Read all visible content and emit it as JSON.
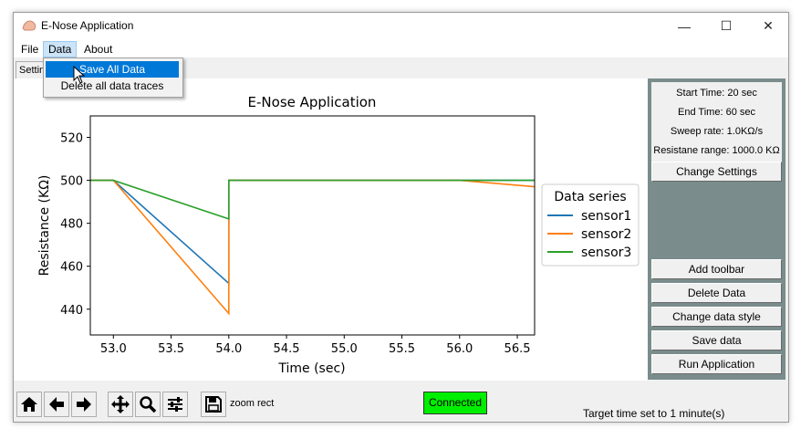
{
  "window": {
    "title": "E-Nose Application",
    "controls": {
      "minimize": "—",
      "maximize": "☐",
      "close": "✕"
    }
  },
  "menu": {
    "items": [
      "File",
      "Data",
      "About"
    ],
    "active": "Data",
    "dropdown": [
      "Save All Data",
      "Delete all data traces"
    ],
    "highlighted": "Save All Data"
  },
  "tab_label": "Settings",
  "chart_data": {
    "type": "line",
    "title": "E-Nose Application",
    "xlabel": "Time (sec)",
    "ylabel": "Resistance (KΩ)",
    "xlim": [
      52.8,
      56.65
    ],
    "ylim": [
      428,
      530
    ],
    "xticks": [
      "53.0",
      "53.5",
      "54.0",
      "54.5",
      "55.0",
      "55.5",
      "56.0",
      "56.5"
    ],
    "yticks": [
      "440",
      "460",
      "480",
      "500",
      "520"
    ],
    "grid": false,
    "legend": {
      "title": "Data series",
      "placement": "right-outside"
    },
    "series": [
      {
        "name": "sensor1",
        "color": "#1f77b4",
        "x": [
          52.8,
          53.0,
          54.0,
          54.0,
          56.65
        ],
        "y": [
          500,
          500,
          452,
          500,
          500
        ]
      },
      {
        "name": "sensor2",
        "color": "#ff7f0e",
        "x": [
          52.8,
          53.0,
          54.0,
          54.0,
          56.0,
          56.65
        ],
        "y": [
          500,
          500,
          438,
          500,
          500,
          497
        ]
      },
      {
        "name": "sensor3",
        "color": "#2ca02c",
        "x": [
          52.8,
          53.0,
          54.0,
          54.0,
          56.65
        ],
        "y": [
          500,
          500,
          482,
          500,
          500
        ]
      }
    ]
  },
  "right_panel": {
    "info": [
      "Start Time: 20 sec",
      "End Time: 60 sec",
      "Sweep rate: 1.0KΩ/s",
      "Resistane range: 1000.0 KΩ"
    ],
    "change_settings": "Change Settings",
    "buttons": [
      "Add toolbar",
      "Delete Data",
      "Change data style",
      "Save data",
      "Run Application"
    ]
  },
  "toolbar": {
    "icons": [
      "home-icon",
      "back-arrow-icon",
      "forward-arrow-icon",
      "pan-icon",
      "zoom-icon",
      "configure-icon",
      "save-icon"
    ],
    "mode_text": "zoom rect"
  },
  "connection": {
    "label": "Connected",
    "color": "#00ee00"
  },
  "status": "Target time set to 1 minute(s)"
}
